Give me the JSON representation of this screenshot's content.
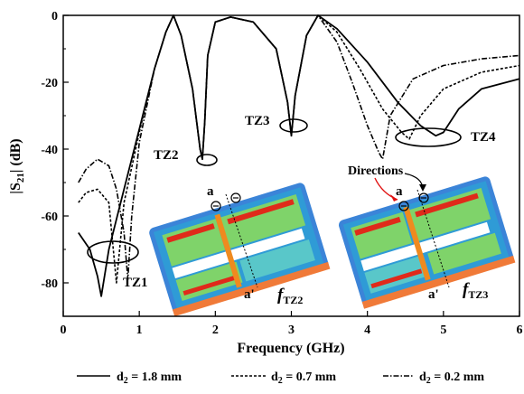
{
  "chart_data": {
    "type": "line",
    "title": "",
    "xlabel": "Frequency (GHz)",
    "ylabel_main": "|S",
    "ylabel_sub": "21",
    "ylabel_tail": "| (dB)",
    "xlim": [
      0,
      6
    ],
    "ylim": [
      -90,
      0
    ],
    "xticks": [
      0,
      1,
      2,
      3,
      4,
      5,
      6
    ],
    "yticks": [
      0,
      -20,
      -40,
      -60,
      -80
    ],
    "grid": false,
    "legend_position": "bottom",
    "series": [
      {
        "name": "d2 = 1.8 mm",
        "legend_main": "d",
        "legend_sub": "2",
        "legend_tail": " = 1.8 mm",
        "dash": "solid",
        "x": [
          0.2,
          0.35,
          0.45,
          0.5,
          0.6,
          0.8,
          1.0,
          1.2,
          1.35,
          1.45,
          1.55,
          1.7,
          1.8,
          1.83,
          1.86,
          1.9,
          2.0,
          2.2,
          2.5,
          2.8,
          2.95,
          3.0,
          3.05,
          3.2,
          3.35,
          3.6,
          4.0,
          4.4,
          4.7,
          4.9,
          5.0,
          5.2,
          5.5,
          6.0
        ],
        "y": [
          -65,
          -70,
          -78,
          -84,
          -70,
          -52,
          -34,
          -16,
          -5,
          0,
          -6,
          -22,
          -40,
          -43,
          -32,
          -12,
          -2,
          -0.5,
          -2,
          -10,
          -26,
          -36,
          -24,
          -6,
          0,
          -4,
          -14,
          -26,
          -33,
          -36,
          -35,
          -28,
          -22,
          -19
        ]
      },
      {
        "name": "d2 = 0.7 mm",
        "legend_main": "d",
        "legend_sub": "2",
        "legend_tail": " = 0.7 mm",
        "dash": "dashed",
        "x": [
          0.2,
          0.3,
          0.45,
          0.6,
          0.7,
          0.8,
          1.0,
          1.2,
          1.35,
          1.45,
          1.55,
          1.7,
          1.8,
          1.83,
          1.86,
          1.9,
          2.0,
          2.2,
          2.5,
          2.8,
          2.95,
          3.0,
          3.05,
          3.2,
          3.35,
          3.6,
          3.9,
          4.2,
          4.45,
          4.55,
          4.7,
          5.0,
          5.5,
          6.0
        ],
        "y": [
          -56,
          -53,
          -52,
          -56,
          -80,
          -56,
          -35,
          -16,
          -5,
          0,
          -6,
          -22,
          -40,
          -43,
          -32,
          -12,
          -2,
          -0.5,
          -2,
          -10,
          -26,
          -36,
          -24,
          -6,
          0,
          -5,
          -16,
          -28,
          -35,
          -37,
          -30,
          -22,
          -17,
          -15
        ]
      },
      {
        "name": "d2 = 0.2 mm",
        "legend_main": "d",
        "legend_sub": "2",
        "legend_tail": " = 0.2 mm",
        "dash": "dashdot",
        "x": [
          0.2,
          0.3,
          0.45,
          0.6,
          0.7,
          0.8,
          0.85,
          0.9,
          1.0,
          1.2,
          1.35,
          1.45,
          1.55,
          1.7,
          1.8,
          1.83,
          1.86,
          1.9,
          2.0,
          2.2,
          2.5,
          2.8,
          2.95,
          3.0,
          3.05,
          3.2,
          3.35,
          3.6,
          3.8,
          4.0,
          4.15,
          4.2,
          4.3,
          4.6,
          5.0,
          5.5,
          6.0
        ],
        "y": [
          -50,
          -46,
          -43,
          -45,
          -52,
          -65,
          -79,
          -60,
          -38,
          -16,
          -5,
          0,
          -6,
          -22,
          -40,
          -43,
          -32,
          -12,
          -2,
          -0.5,
          -2,
          -10,
          -26,
          -36,
          -24,
          -6,
          0,
          -8,
          -20,
          -33,
          -41,
          -43,
          -30,
          -19,
          -15,
          -13,
          -12
        ]
      }
    ],
    "annotations": {
      "tz1": "TZ1",
      "tz2": "TZ2",
      "tz3": "TZ3",
      "tz4": "TZ4",
      "directions": "Directions",
      "a_left": "a",
      "a_prime_left": "a'",
      "a_right": "a",
      "a_prime_right": "a'",
      "f_left_main": "f",
      "f_left_sub": "TZ2",
      "f_right_main": "f",
      "f_right_sub": "TZ3"
    }
  }
}
